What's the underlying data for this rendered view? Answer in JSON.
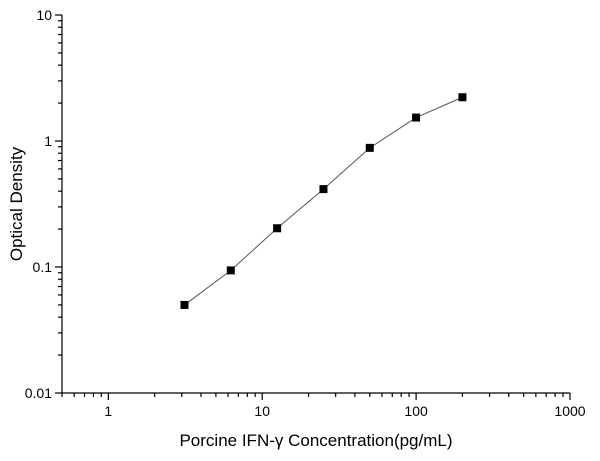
{
  "chart_data": {
    "type": "scatter",
    "title": "",
    "xlabel": "Porcine IFN-γ Concentration(pg/mL)",
    "ylabel": "Optical  Density",
    "xscale": "log",
    "yscale": "log",
    "xlim": [
      0.5,
      1000
    ],
    "ylim": [
      0.01,
      10
    ],
    "xticks": [
      1,
      10,
      100,
      1000
    ],
    "xtick_labels": [
      "1",
      "10",
      "100",
      "1000"
    ],
    "yticks": [
      0.01,
      0.1,
      1,
      10
    ],
    "ytick_labels": [
      "0.01",
      "0.1",
      "1",
      "10"
    ],
    "grid": false,
    "series": [
      {
        "x": [
          3.125,
          6.25,
          12.5,
          25,
          50,
          100,
          200
        ],
        "y": [
          0.05,
          0.094,
          0.203,
          0.415,
          0.882,
          1.535,
          2.224
        ]
      }
    ]
  }
}
